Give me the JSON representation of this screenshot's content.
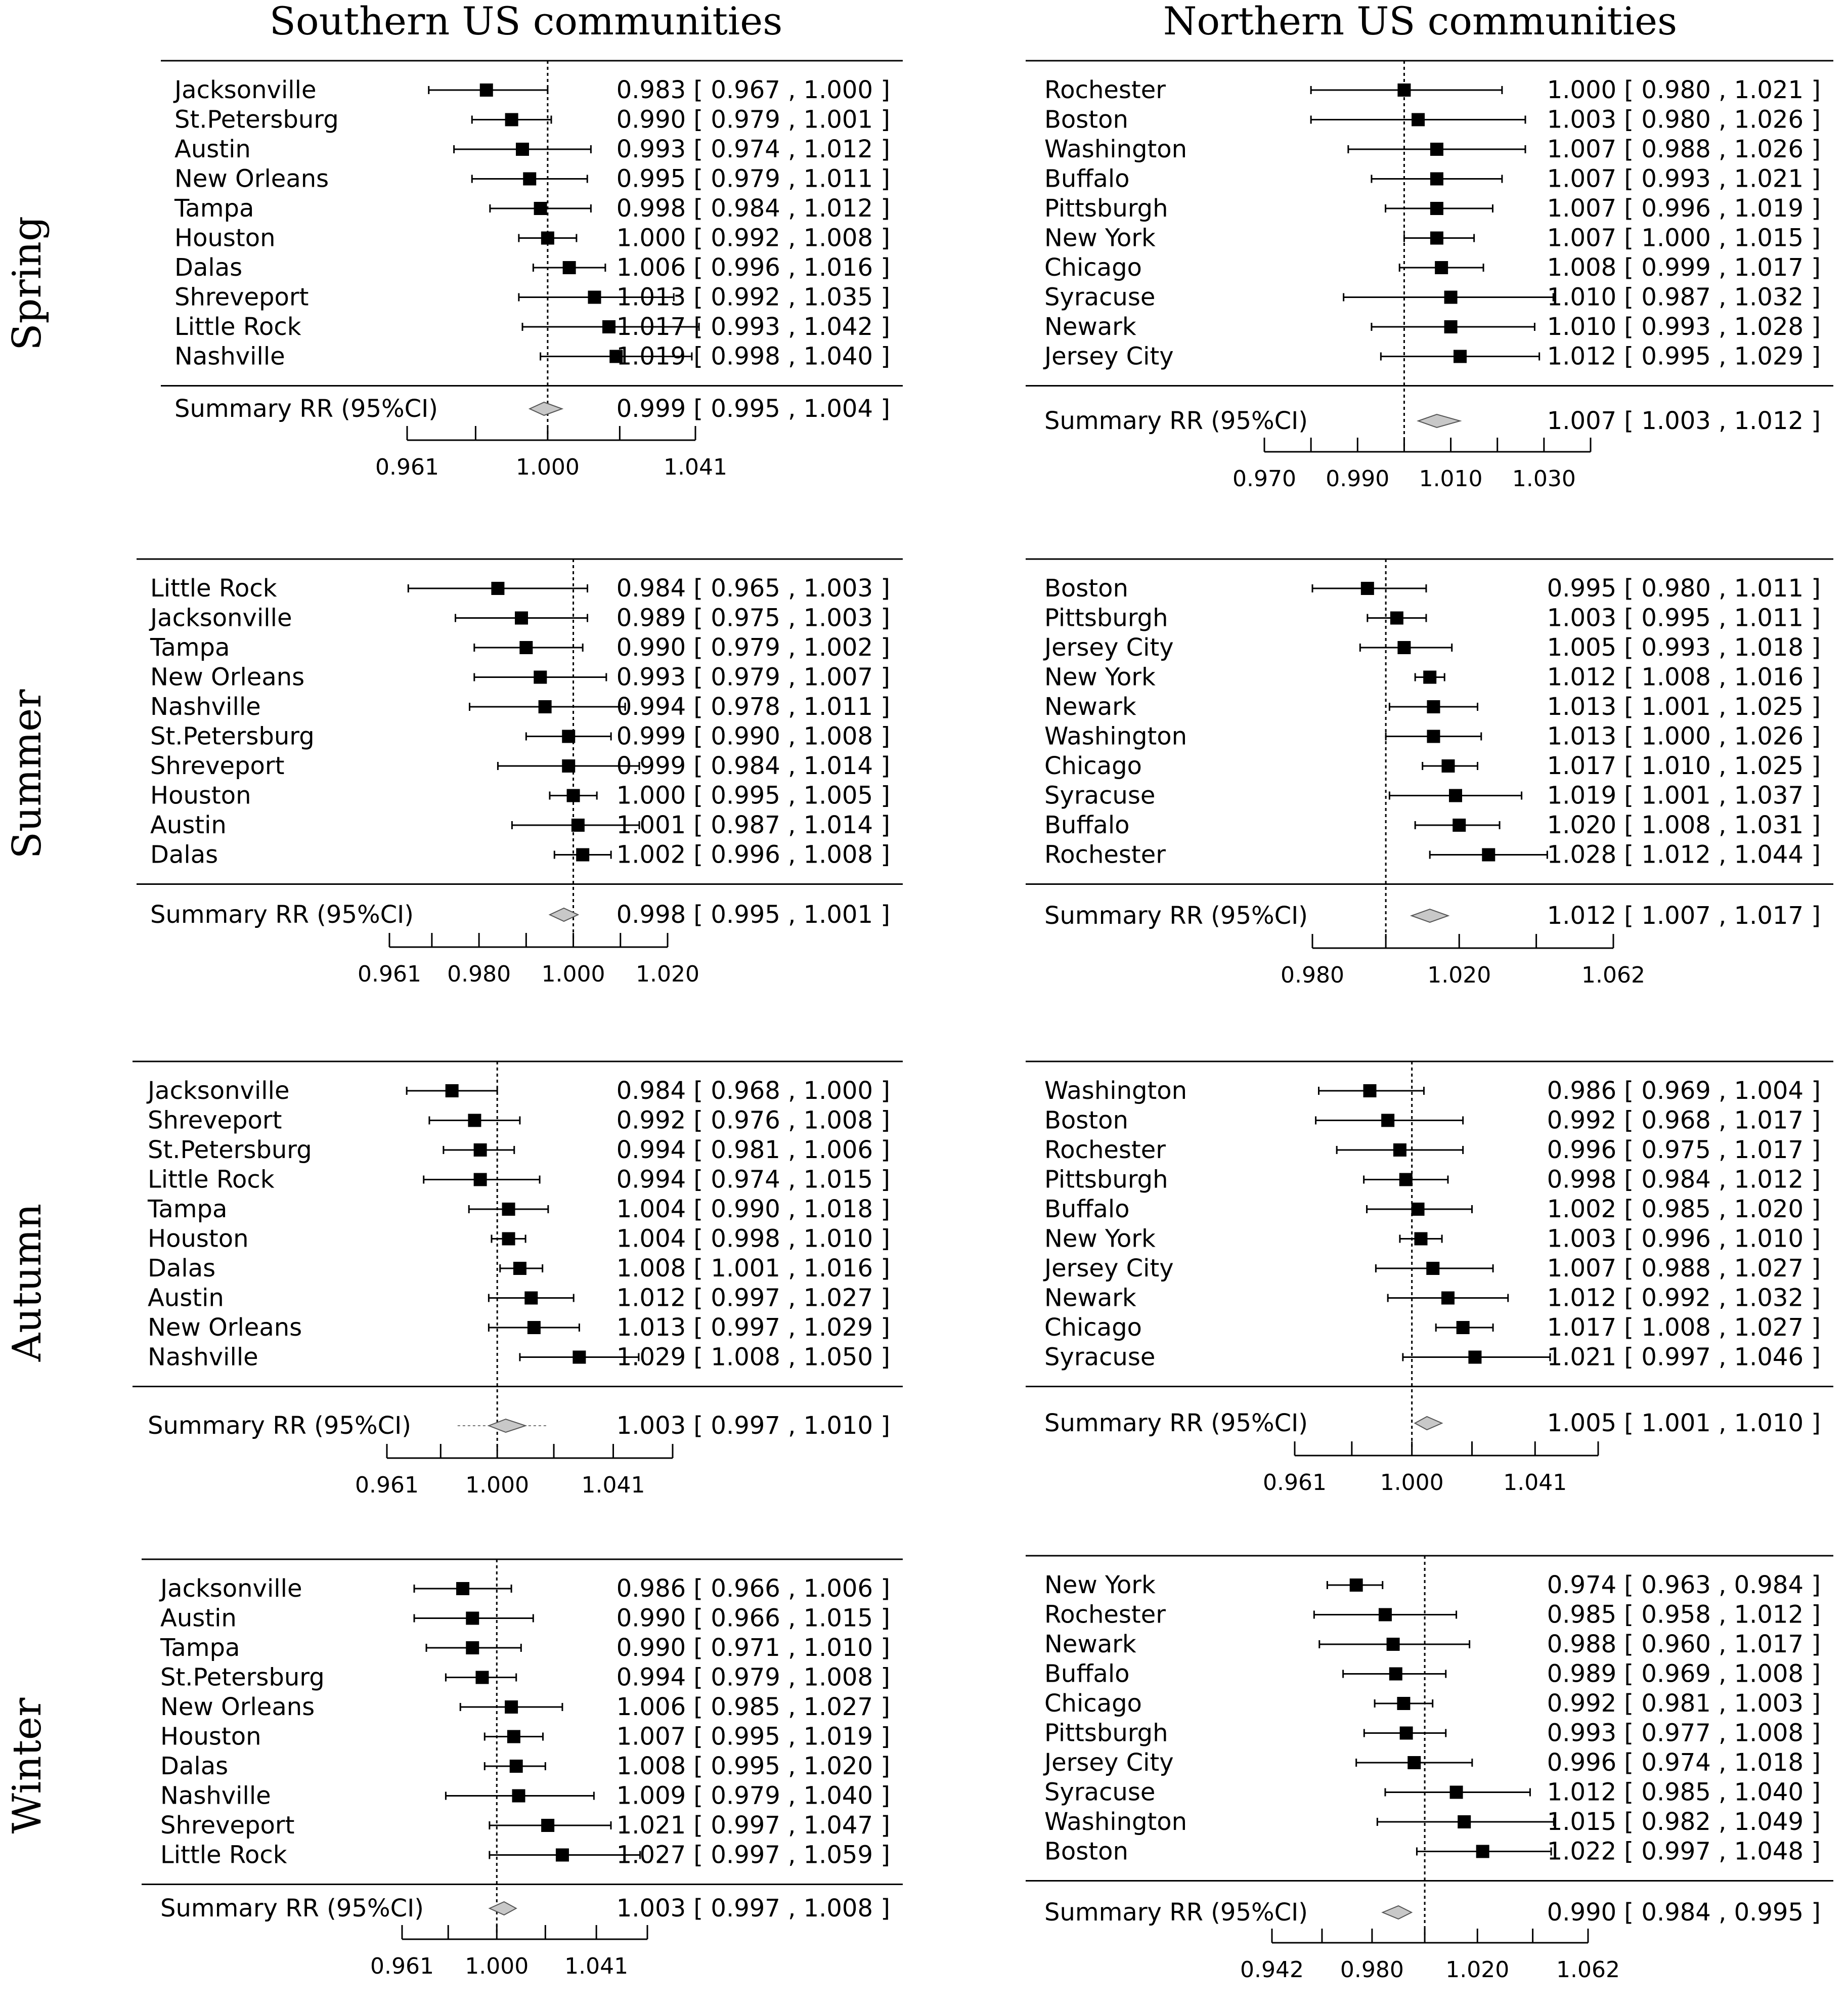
{
  "column_titles": [
    "Southern US communities",
    "Northern US communities"
  ],
  "row_titles": [
    "Spring",
    "Summer",
    "Autumn",
    "Winter"
  ],
  "summary_label": "Summary RR (95%CI)",
  "chart_data": [
    {
      "type": "forest",
      "season": "Spring",
      "region": "Southern US communities",
      "xlim": [
        0.961,
        1.041
      ],
      "ref": 1.0,
      "ticks": [
        0.961,
        0.98,
        1.0,
        1.02,
        1.041
      ],
      "tick_labels": [
        "0.961",
        "",
        "1.000",
        "",
        "1.041"
      ],
      "studies": [
        {
          "name": "Jacksonville",
          "rr": 0.983,
          "lo": 0.967,
          "hi": 1.0,
          "text": "0.983 [ 0.967 , 1.000 ]"
        },
        {
          "name": "St.Petersburg",
          "rr": 0.99,
          "lo": 0.979,
          "hi": 1.001,
          "text": "0.990 [ 0.979 , 1.001 ]"
        },
        {
          "name": "Austin",
          "rr": 0.993,
          "lo": 0.974,
          "hi": 1.012,
          "text": "0.993 [ 0.974 , 1.012 ]"
        },
        {
          "name": "New Orleans",
          "rr": 0.995,
          "lo": 0.979,
          "hi": 1.011,
          "text": "0.995 [ 0.979 , 1.011 ]"
        },
        {
          "name": "Tampa",
          "rr": 0.998,
          "lo": 0.984,
          "hi": 1.012,
          "text": "0.998 [ 0.984 , 1.012 ]"
        },
        {
          "name": "Houston",
          "rr": 1.0,
          "lo": 0.992,
          "hi": 1.008,
          "text": "1.000 [ 0.992 , 1.008 ]"
        },
        {
          "name": "Dalas",
          "rr": 1.006,
          "lo": 0.996,
          "hi": 1.016,
          "text": "1.006 [ 0.996 , 1.016 ]"
        },
        {
          "name": "Shreveport",
          "rr": 1.013,
          "lo": 0.992,
          "hi": 1.035,
          "text": "1.013 [ 0.992 , 1.035 ]"
        },
        {
          "name": "Little Rock",
          "rr": 1.017,
          "lo": 0.993,
          "hi": 1.042,
          "text": "1.017 [ 0.993 , 1.042 ]"
        },
        {
          "name": "Nashville",
          "rr": 1.019,
          "lo": 0.998,
          "hi": 1.04,
          "text": "1.019 [ 0.998 , 1.040 ]"
        }
      ],
      "summary": {
        "rr": 0.999,
        "lo": 0.995,
        "hi": 1.004,
        "text": "0.999 [ 0.995 , 1.004 ]"
      }
    },
    {
      "type": "forest",
      "season": "Spring",
      "region": "Northern US communities",
      "xlim": [
        0.97,
        1.04
      ],
      "ref": 1.0,
      "ticks": [
        0.97,
        0.98,
        0.99,
        1.0,
        1.01,
        1.02,
        1.03,
        1.04
      ],
      "tick_labels": [
        "0.970",
        "",
        "0.990",
        "",
        "1.010",
        "",
        "1.030",
        ""
      ],
      "studies": [
        {
          "name": "Rochester",
          "rr": 1.0,
          "lo": 0.98,
          "hi": 1.021,
          "text": "1.000 [ 0.980 , 1.021 ]"
        },
        {
          "name": "Boston",
          "rr": 1.003,
          "lo": 0.98,
          "hi": 1.026,
          "text": "1.003 [ 0.980 , 1.026 ]"
        },
        {
          "name": "Washington",
          "rr": 1.007,
          "lo": 0.988,
          "hi": 1.026,
          "text": "1.007 [ 0.988 , 1.026 ]"
        },
        {
          "name": "Buffalo",
          "rr": 1.007,
          "lo": 0.993,
          "hi": 1.021,
          "text": "1.007 [ 0.993 , 1.021 ]"
        },
        {
          "name": "Pittsburgh",
          "rr": 1.007,
          "lo": 0.996,
          "hi": 1.019,
          "text": "1.007 [ 0.996 , 1.019 ]"
        },
        {
          "name": "New York",
          "rr": 1.007,
          "lo": 1.0,
          "hi": 1.015,
          "text": "1.007 [ 1.000 , 1.015 ]"
        },
        {
          "name": "Chicago",
          "rr": 1.008,
          "lo": 0.999,
          "hi": 1.017,
          "text": "1.008 [ 0.999 , 1.017 ]"
        },
        {
          "name": "Syracuse",
          "rr": 1.01,
          "lo": 0.987,
          "hi": 1.032,
          "text": "1.010 [ 0.987 , 1.032 ]"
        },
        {
          "name": "Newark",
          "rr": 1.01,
          "lo": 0.993,
          "hi": 1.028,
          "text": "1.010 [ 0.993 , 1.028 ]"
        },
        {
          "name": "Jersey City",
          "rr": 1.012,
          "lo": 0.995,
          "hi": 1.029,
          "text": "1.012 [ 0.995 , 1.029 ]"
        }
      ],
      "summary": {
        "rr": 1.007,
        "lo": 1.003,
        "hi": 1.012,
        "text": "1.007 [ 1.003 , 1.012 ]"
      }
    },
    {
      "type": "forest",
      "season": "Summer",
      "region": "Southern US communities",
      "xlim": [
        0.961,
        1.02
      ],
      "ref": 1.0,
      "ticks": [
        0.961,
        0.97,
        0.98,
        0.99,
        1.0,
        1.01,
        1.02
      ],
      "tick_labels": [
        "0.961",
        "",
        "0.980",
        "",
        "1.000",
        "",
        "1.020"
      ],
      "studies": [
        {
          "name": "Little Rock",
          "rr": 0.984,
          "lo": 0.965,
          "hi": 1.003,
          "text": "0.984 [ 0.965 , 1.003 ]"
        },
        {
          "name": "Jacksonville",
          "rr": 0.989,
          "lo": 0.975,
          "hi": 1.003,
          "text": "0.989 [ 0.975 , 1.003 ]"
        },
        {
          "name": "Tampa",
          "rr": 0.99,
          "lo": 0.979,
          "hi": 1.002,
          "text": "0.990 [ 0.979 , 1.002 ]"
        },
        {
          "name": "New Orleans",
          "rr": 0.993,
          "lo": 0.979,
          "hi": 1.007,
          "text": "0.993 [ 0.979 , 1.007 ]"
        },
        {
          "name": "Nashville",
          "rr": 0.994,
          "lo": 0.978,
          "hi": 1.011,
          "text": "0.994 [ 0.978 , 1.011 ]"
        },
        {
          "name": "St.Petersburg",
          "rr": 0.999,
          "lo": 0.99,
          "hi": 1.008,
          "text": "0.999 [ 0.990 , 1.008 ]"
        },
        {
          "name": "Shreveport",
          "rr": 0.999,
          "lo": 0.984,
          "hi": 1.014,
          "text": "0.999 [ 0.984 , 1.014 ]"
        },
        {
          "name": "Houston",
          "rr": 1.0,
          "lo": 0.995,
          "hi": 1.005,
          "text": "1.000 [ 0.995 , 1.005 ]"
        },
        {
          "name": "Austin",
          "rr": 1.001,
          "lo": 0.987,
          "hi": 1.014,
          "text": "1.001 [ 0.987 , 1.014 ]"
        },
        {
          "name": "Dalas",
          "rr": 1.002,
          "lo": 0.996,
          "hi": 1.008,
          "text": "1.002 [ 0.996 , 1.008 ]"
        }
      ],
      "summary": {
        "rr": 0.998,
        "lo": 0.995,
        "hi": 1.001,
        "text": "0.998 [ 0.995 , 1.001 ]"
      }
    },
    {
      "type": "forest",
      "season": "Summer",
      "region": "Northern US communities",
      "xlim": [
        0.98,
        1.062
      ],
      "ref": 1.0,
      "ticks": [
        0.98,
        1.0,
        1.02,
        1.041,
        1.062
      ],
      "tick_labels": [
        "0.980",
        "",
        "1.020",
        "",
        "1.062"
      ],
      "studies": [
        {
          "name": "Boston",
          "rr": 0.995,
          "lo": 0.98,
          "hi": 1.011,
          "text": "0.995 [ 0.980 , 1.011 ]"
        },
        {
          "name": "Pittsburgh",
          "rr": 1.003,
          "lo": 0.995,
          "hi": 1.011,
          "text": "1.003 [ 0.995 , 1.011 ]"
        },
        {
          "name": "Jersey City",
          "rr": 1.005,
          "lo": 0.993,
          "hi": 1.018,
          "text": "1.005 [ 0.993 , 1.018 ]"
        },
        {
          "name": "New York",
          "rr": 1.012,
          "lo": 1.008,
          "hi": 1.016,
          "text": "1.012 [ 1.008 , 1.016 ]"
        },
        {
          "name": "Newark",
          "rr": 1.013,
          "lo": 1.001,
          "hi": 1.025,
          "text": "1.013 [ 1.001 , 1.025 ]"
        },
        {
          "name": "Washington",
          "rr": 1.013,
          "lo": 1.0,
          "hi": 1.026,
          "text": "1.013 [ 1.000 , 1.026 ]"
        },
        {
          "name": "Chicago",
          "rr": 1.017,
          "lo": 1.01,
          "hi": 1.025,
          "text": "1.017 [ 1.010 , 1.025 ]"
        },
        {
          "name": "Syracuse",
          "rr": 1.019,
          "lo": 1.001,
          "hi": 1.037,
          "text": "1.019 [ 1.001 , 1.037 ]"
        },
        {
          "name": "Buffalo",
          "rr": 1.02,
          "lo": 1.008,
          "hi": 1.031,
          "text": "1.020 [ 1.008 , 1.031 ]"
        },
        {
          "name": "Rochester",
          "rr": 1.028,
          "lo": 1.012,
          "hi": 1.044,
          "text": "1.028 [ 1.012 , 1.044 ]"
        }
      ],
      "summary": {
        "rr": 1.012,
        "lo": 1.007,
        "hi": 1.017,
        "text": "1.012 [ 1.007 , 1.017 ]"
      }
    },
    {
      "type": "forest",
      "season": "Autumn",
      "region": "Southern US communities",
      "xlim": [
        0.961,
        1.062
      ],
      "ref": 1.0,
      "ticks": [
        0.961,
        0.98,
        1.0,
        1.02,
        1.041,
        1.062
      ],
      "tick_labels": [
        "0.961",
        "",
        "1.000",
        "",
        "1.041",
        ""
      ],
      "studies": [
        {
          "name": "Jacksonville",
          "rr": 0.984,
          "lo": 0.968,
          "hi": 1.0,
          "text": "0.984 [ 0.968 , 1.000 ]"
        },
        {
          "name": "Shreveport",
          "rr": 0.992,
          "lo": 0.976,
          "hi": 1.008,
          "text": "0.992 [ 0.976 , 1.008 ]"
        },
        {
          "name": "St.Petersburg",
          "rr": 0.994,
          "lo": 0.981,
          "hi": 1.006,
          "text": "0.994 [ 0.981 , 1.006 ]"
        },
        {
          "name": "Little Rock",
          "rr": 0.994,
          "lo": 0.974,
          "hi": 1.015,
          "text": "0.994 [ 0.974 , 1.015 ]"
        },
        {
          "name": "Tampa",
          "rr": 1.004,
          "lo": 0.99,
          "hi": 1.018,
          "text": "1.004 [ 0.990 , 1.018 ]"
        },
        {
          "name": "Houston",
          "rr": 1.004,
          "lo": 0.998,
          "hi": 1.01,
          "text": "1.004 [ 0.998 , 1.010 ]"
        },
        {
          "name": "Dalas",
          "rr": 1.008,
          "lo": 1.001,
          "hi": 1.016,
          "text": "1.008 [ 1.001 , 1.016 ]"
        },
        {
          "name": "Austin",
          "rr": 1.012,
          "lo": 0.997,
          "hi": 1.027,
          "text": "1.012 [ 0.997 , 1.027 ]"
        },
        {
          "name": "New Orleans",
          "rr": 1.013,
          "lo": 0.997,
          "hi": 1.029,
          "text": "1.013 [ 0.997 , 1.029 ]"
        },
        {
          "name": "Nashville",
          "rr": 1.029,
          "lo": 1.008,
          "hi": 1.05,
          "text": "1.029 [ 1.008 , 1.050 ]"
        }
      ],
      "summary": {
        "rr": 1.003,
        "lo": 0.997,
        "hi": 1.01,
        "text": "1.003 [ 0.997 , 1.010 ]",
        "ci_lo": 0.986,
        "ci_hi": 1.018
      }
    },
    {
      "type": "forest",
      "season": "Autumn",
      "region": "Northern US communities",
      "xlim": [
        0.961,
        1.062
      ],
      "ref": 1.0,
      "ticks": [
        0.961,
        0.98,
        1.0,
        1.02,
        1.041,
        1.062
      ],
      "tick_labels": [
        "0.961",
        "",
        "1.000",
        "",
        "1.041",
        ""
      ],
      "studies": [
        {
          "name": "Washington",
          "rr": 0.986,
          "lo": 0.969,
          "hi": 1.004,
          "text": "0.986 [ 0.969 , 1.004 ]"
        },
        {
          "name": "Boston",
          "rr": 0.992,
          "lo": 0.968,
          "hi": 1.017,
          "text": "0.992 [ 0.968 , 1.017 ]"
        },
        {
          "name": "Rochester",
          "rr": 0.996,
          "lo": 0.975,
          "hi": 1.017,
          "text": "0.996 [ 0.975 , 1.017 ]"
        },
        {
          "name": "Pittsburgh",
          "rr": 0.998,
          "lo": 0.984,
          "hi": 1.012,
          "text": "0.998 [ 0.984 , 1.012 ]"
        },
        {
          "name": "Buffalo",
          "rr": 1.002,
          "lo": 0.985,
          "hi": 1.02,
          "text": "1.002 [ 0.985 , 1.020 ]"
        },
        {
          "name": "New York",
          "rr": 1.003,
          "lo": 0.996,
          "hi": 1.01,
          "text": "1.003 [ 0.996 , 1.010 ]"
        },
        {
          "name": "Jersey City",
          "rr": 1.007,
          "lo": 0.988,
          "hi": 1.027,
          "text": "1.007 [ 0.988 , 1.027 ]"
        },
        {
          "name": "Newark",
          "rr": 1.012,
          "lo": 0.992,
          "hi": 1.032,
          "text": "1.012 [ 0.992 , 1.032 ]"
        },
        {
          "name": "Chicago",
          "rr": 1.017,
          "lo": 1.008,
          "hi": 1.027,
          "text": "1.017 [ 1.008 , 1.027 ]"
        },
        {
          "name": "Syracuse",
          "rr": 1.021,
          "lo": 0.997,
          "hi": 1.046,
          "text": "1.021 [ 0.997 , 1.046 ]"
        }
      ],
      "summary": {
        "rr": 1.005,
        "lo": 1.001,
        "hi": 1.01,
        "text": "1.005 [ 1.001 , 1.010 ]"
      }
    },
    {
      "type": "forest",
      "season": "Winter",
      "region": "Southern US communities",
      "xlim": [
        0.961,
        1.062
      ],
      "ref": 1.0,
      "ticks": [
        0.961,
        0.98,
        1.0,
        1.02,
        1.041,
        1.062
      ],
      "tick_labels": [
        "0.961",
        "",
        "1.000",
        "",
        "1.041",
        ""
      ],
      "studies": [
        {
          "name": "Jacksonville",
          "rr": 0.986,
          "lo": 0.966,
          "hi": 1.006,
          "text": "0.986 [ 0.966 , 1.006 ]"
        },
        {
          "name": "Austin",
          "rr": 0.99,
          "lo": 0.966,
          "hi": 1.015,
          "text": "0.990 [ 0.966 , 1.015 ]"
        },
        {
          "name": "Tampa",
          "rr": 0.99,
          "lo": 0.971,
          "hi": 1.01,
          "text": "0.990 [ 0.971 , 1.010 ]"
        },
        {
          "name": "St.Petersburg",
          "rr": 0.994,
          "lo": 0.979,
          "hi": 1.008,
          "text": "0.994 [ 0.979 , 1.008 ]"
        },
        {
          "name": "New Orleans",
          "rr": 1.006,
          "lo": 0.985,
          "hi": 1.027,
          "text": "1.006 [ 0.985 , 1.027 ]"
        },
        {
          "name": "Houston",
          "rr": 1.007,
          "lo": 0.995,
          "hi": 1.019,
          "text": "1.007 [ 0.995 , 1.019 ]"
        },
        {
          "name": "Dalas",
          "rr": 1.008,
          "lo": 0.995,
          "hi": 1.02,
          "text": "1.008 [ 0.995 , 1.020 ]"
        },
        {
          "name": "Nashville",
          "rr": 1.009,
          "lo": 0.979,
          "hi": 1.04,
          "text": "1.009 [ 0.979 , 1.040 ]"
        },
        {
          "name": "Shreveport",
          "rr": 1.021,
          "lo": 0.997,
          "hi": 1.047,
          "text": "1.021 [ 0.997 , 1.047 ]"
        },
        {
          "name": "Little Rock",
          "rr": 1.027,
          "lo": 0.997,
          "hi": 1.059,
          "text": "1.027 [ 0.997 , 1.059 ]"
        }
      ],
      "summary": {
        "rr": 1.003,
        "lo": 0.997,
        "hi": 1.008,
        "text": "1.003 [ 0.997 , 1.008 ]"
      }
    },
    {
      "type": "forest",
      "season": "Winter",
      "region": "Northern US communities",
      "xlim": [
        0.942,
        1.062
      ],
      "ref": 1.0,
      "ticks": [
        0.942,
        0.961,
        0.98,
        1.0,
        1.02,
        1.041,
        1.062
      ],
      "tick_labels": [
        "0.942",
        "",
        "0.980",
        "",
        "1.020",
        "",
        "1.062"
      ],
      "studies": [
        {
          "name": "New York",
          "rr": 0.974,
          "lo": 0.963,
          "hi": 0.984,
          "text": "0.974 [ 0.963 , 0.984 ]"
        },
        {
          "name": "Rochester",
          "rr": 0.985,
          "lo": 0.958,
          "hi": 1.012,
          "text": "0.985 [ 0.958 , 1.012 ]"
        },
        {
          "name": "Newark",
          "rr": 0.988,
          "lo": 0.96,
          "hi": 1.017,
          "text": "0.988 [ 0.960 , 1.017 ]"
        },
        {
          "name": "Buffalo",
          "rr": 0.989,
          "lo": 0.969,
          "hi": 1.008,
          "text": "0.989 [ 0.969 , 1.008 ]"
        },
        {
          "name": "Chicago",
          "rr": 0.992,
          "lo": 0.981,
          "hi": 1.003,
          "text": "0.992 [ 0.981 , 1.003 ]"
        },
        {
          "name": "Pittsburgh",
          "rr": 0.993,
          "lo": 0.977,
          "hi": 1.008,
          "text": "0.993 [ 0.977 , 1.008 ]"
        },
        {
          "name": "Jersey City",
          "rr": 0.996,
          "lo": 0.974,
          "hi": 1.018,
          "text": "0.996 [ 0.974 , 1.018 ]"
        },
        {
          "name": "Syracuse",
          "rr": 1.012,
          "lo": 0.985,
          "hi": 1.04,
          "text": "1.012 [ 0.985 , 1.040 ]"
        },
        {
          "name": "Washington",
          "rr": 1.015,
          "lo": 0.982,
          "hi": 1.049,
          "text": "1.015 [ 0.982 , 1.049 ]"
        },
        {
          "name": "Boston",
          "rr": 1.022,
          "lo": 0.997,
          "hi": 1.048,
          "text": "1.022 [ 0.997 , 1.048 ]"
        }
      ],
      "summary": {
        "rr": 0.99,
        "lo": 0.984,
        "hi": 0.995,
        "text": "0.990 [ 0.984 , 0.995 ]"
      }
    }
  ]
}
